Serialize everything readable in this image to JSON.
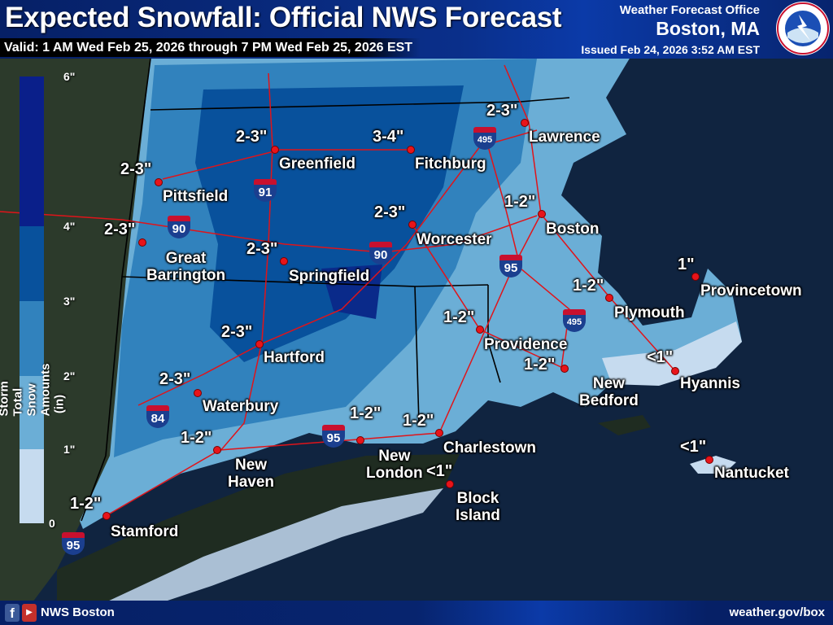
{
  "header": {
    "title": "Expected Snowfall: Official NWS Forecast",
    "valid": "Valid: 1 AM Wed Feb 25, 2026 through 7 PM Wed Feb 25, 2026 EST",
    "office_label": "Weather Forecast Office",
    "office": "Boston, MA",
    "issued": "Issued Feb 24, 2026 3:52 AM EST",
    "logo_text": "NATIONAL WEATHER SERVICE"
  },
  "legend": {
    "title": "Storm Total Snow Amounts (in)",
    "bins": [
      {
        "label": "6\"",
        "color": "#0a1f8a"
      },
      {
        "label": "4\"",
        "color": "#08519c"
      },
      {
        "label": "3\"",
        "color": "#3182bd"
      },
      {
        "label": "2\"",
        "color": "#6baed6"
      },
      {
        "label": "1\"",
        "color": "#c6dbef"
      },
      {
        "label": "0"
      }
    ]
  },
  "locations": [
    {
      "name": "Pittsfield",
      "amount": "2-3\""
    },
    {
      "name": "Great\nBarrington",
      "amount": "2-3\""
    },
    {
      "name": "Greenfield",
      "amount": "2-3\""
    },
    {
      "name": "Springfield",
      "amount": "2-3\""
    },
    {
      "name": "Fitchburg",
      "amount": "3-4\""
    },
    {
      "name": "Worcester",
      "amount": "2-3\""
    },
    {
      "name": "Lawrence",
      "amount": "2-3\""
    },
    {
      "name": "Boston",
      "amount": "1-2\""
    },
    {
      "name": "Hartford",
      "amount": "2-3\""
    },
    {
      "name": "Waterbury",
      "amount": "2-3\""
    },
    {
      "name": "New\nHaven",
      "amount": "1-2\""
    },
    {
      "name": "Stamford",
      "amount": "1-2\""
    },
    {
      "name": "New\nLondon",
      "amount": "1-2\""
    },
    {
      "name": "Charlestown",
      "amount": "1-2\""
    },
    {
      "name": "Block\nIsland",
      "amount": "<1\""
    },
    {
      "name": "Providence",
      "amount": "1-2\""
    },
    {
      "name": "New\nBedford",
      "amount": "1-2\""
    },
    {
      "name": "Plymouth",
      "amount": "1-2\""
    },
    {
      "name": "Provincetown",
      "amount": "1\""
    },
    {
      "name": "Hyannis",
      "amount": "<1\""
    },
    {
      "name": "Nantucket",
      "amount": "<1\""
    }
  ],
  "interstates": [
    "90",
    "91",
    "495",
    "90",
    "95",
    "495",
    "84",
    "95",
    "95"
  ],
  "footer": {
    "social": "NWS Boston",
    "url": "weather.gov/box"
  }
}
